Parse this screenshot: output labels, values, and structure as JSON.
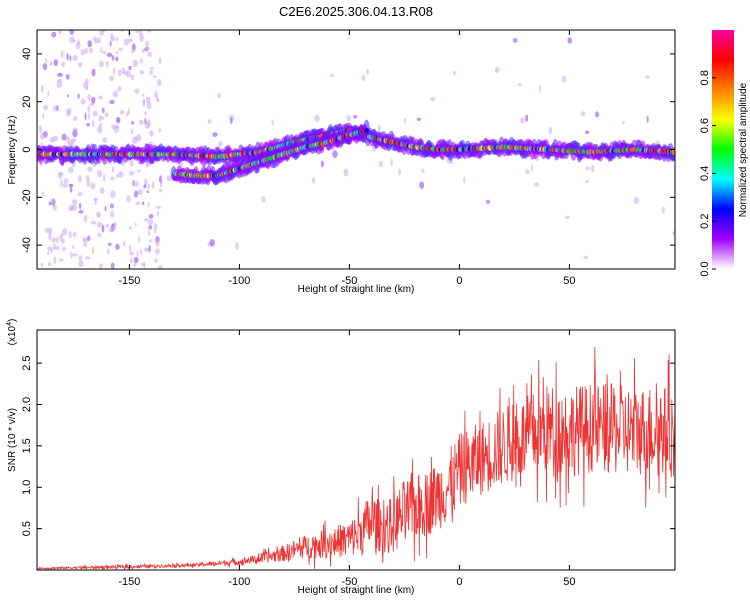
{
  "chart_data": [
    {
      "type": "heatmap",
      "title": "C2E6.2025.306.04.13.R08",
      "xlabel": "Height of straight line (km)",
      "ylabel": "Frequency (Hz)",
      "xlim": [
        -192,
        98
      ],
      "ylim": [
        -50,
        50
      ],
      "x_ticks": [
        -150,
        -100,
        -50,
        0,
        50
      ],
      "y_ticks": [
        -40,
        -20,
        0,
        20,
        40
      ],
      "colorbar": {
        "label": "Normalized spectral amplitude",
        "range": [
          0.0,
          1.0
        ],
        "ticks": [
          "0.0",
          "0.2",
          "0.4",
          "0.6",
          "0.8"
        ],
        "tick_values": [
          0.0,
          0.2,
          0.4,
          0.6,
          0.8
        ],
        "colors": [
          "#ffffff",
          "#a000ff",
          "#0000ff",
          "#00ffff",
          "#00ff00",
          "#ffff00",
          "#ff8000",
          "#ff0000",
          "#ff00a0"
        ]
      },
      "ridges": [
        {
          "name": "main-echo",
          "x": [
            -192,
            -170,
            -150,
            -130,
            -110,
            -90,
            -75,
            -60,
            -50,
            -45,
            -40,
            -30,
            -20,
            -10,
            0,
            20,
            40,
            60,
            80,
            98
          ],
          "y": [
            -2,
            -2,
            -2,
            -2,
            -3,
            -1,
            3,
            6,
            8,
            7,
            5,
            3,
            1,
            0,
            0,
            1,
            0,
            -1,
            0,
            -1
          ]
        },
        {
          "name": "lower-branch",
          "x": [
            -130,
            -120,
            -110,
            -100,
            -90,
            -80,
            -70,
            -60,
            -50,
            -42
          ],
          "y": [
            -10,
            -11,
            -11,
            -8,
            -5,
            -2,
            1,
            3,
            6,
            8
          ]
        }
      ]
    },
    {
      "type": "line",
      "xlabel": "Height of straight line (km)",
      "ylabel": "SNR (10 * v/v)",
      "y_multiplier": "(x10",
      "y_multiplier_exp": "4",
      "y_multiplier_close": ")",
      "xlim": [
        -192,
        98
      ],
      "ylim": [
        0,
        2.9
      ],
      "x_ticks": [
        -150,
        -100,
        -50,
        0,
        50
      ],
      "y_ticks": [
        0.5,
        1.0,
        1.5,
        2.0,
        2.5
      ],
      "y_tick_labels": [
        "0.5",
        "1.0",
        "1.5",
        "2.0",
        "2.5"
      ],
      "color": "#ee3333",
      "envelope": {
        "x": [
          -192,
          -150,
          -120,
          -100,
          -90,
          -80,
          -70,
          -60,
          -50,
          -45,
          -40,
          -35,
          -30,
          -25,
          -20,
          -15,
          -10,
          -5,
          0,
          10,
          20,
          30,
          40,
          50,
          60,
          70,
          80,
          90,
          98
        ],
        "mean": [
          0.02,
          0.04,
          0.06,
          0.1,
          0.14,
          0.2,
          0.28,
          0.32,
          0.38,
          0.45,
          0.6,
          0.5,
          0.55,
          0.7,
          0.75,
          0.8,
          0.9,
          1.0,
          1.2,
          1.35,
          1.5,
          1.6,
          1.7,
          1.68,
          1.72,
          1.7,
          1.68,
          1.7,
          1.65
        ],
        "spread": [
          0.01,
          0.02,
          0.02,
          0.04,
          0.06,
          0.1,
          0.14,
          0.18,
          0.22,
          0.3,
          0.35,
          0.3,
          0.35,
          0.4,
          0.4,
          0.4,
          0.42,
          0.45,
          0.45,
          0.45,
          0.48,
          0.5,
          0.55,
          0.55,
          0.55,
          0.55,
          0.55,
          0.55,
          0.55
        ]
      }
    }
  ]
}
